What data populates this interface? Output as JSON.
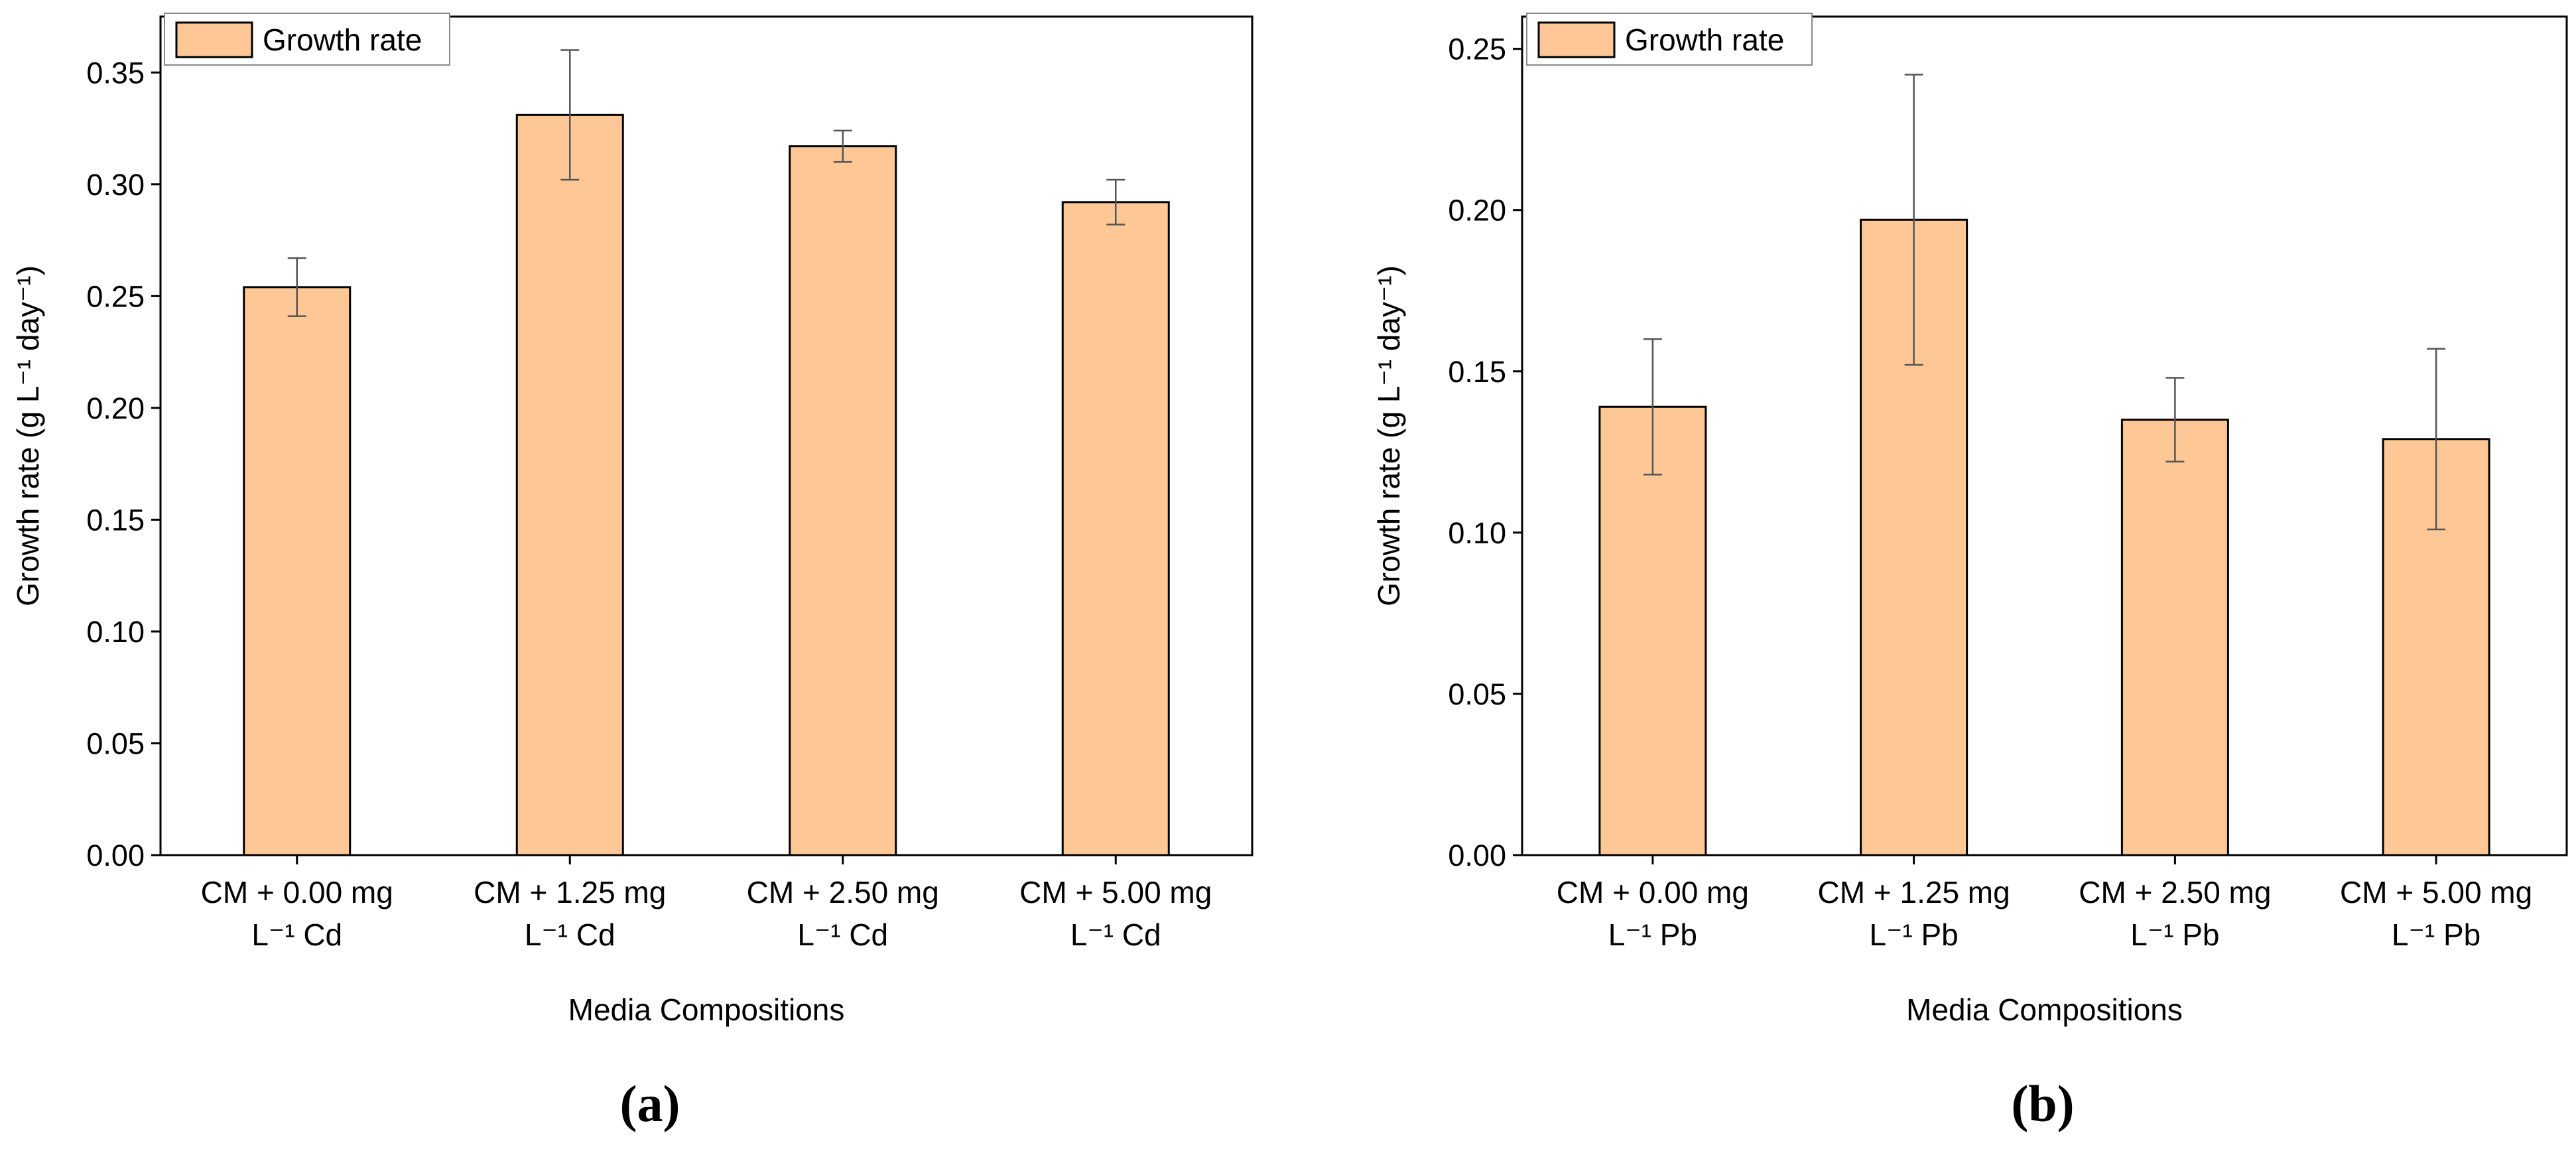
{
  "colors": {
    "bar_fill": "#FEC896",
    "bar_stroke": "#000000",
    "axis": "#000000",
    "errorbar": "#555555"
  },
  "chart_data": [
    {
      "panel": "(a)",
      "type": "bar",
      "categories": [
        [
          "CM + 0.00 mg",
          "L⁻¹ Cd"
        ],
        [
          "CM + 1.25 mg",
          "L⁻¹ Cd"
        ],
        [
          "CM + 2.50 mg",
          "L⁻¹ Cd"
        ],
        [
          "CM + 5.00 mg",
          "L⁻¹ Cd"
        ]
      ],
      "series": [
        {
          "name": "Growth rate",
          "values": [
            0.254,
            0.331,
            0.317,
            0.292
          ],
          "errors": [
            0.013,
            0.029,
            0.007,
            0.01
          ]
        }
      ],
      "xlabel": "Media Compositions",
      "ylabel": "Growth rate (g L⁻¹ day⁻¹)",
      "ylim": [
        0,
        0.375
      ],
      "yticks": [
        "0.00",
        "0.05",
        "0.10",
        "0.15",
        "0.20",
        "0.25",
        "0.30",
        "0.35"
      ],
      "legend": "top-left"
    },
    {
      "panel": "(b)",
      "type": "bar",
      "categories": [
        [
          "CM + 0.00 mg",
          "L⁻¹ Pb"
        ],
        [
          "CM + 1.25 mg",
          "L⁻¹ Pb"
        ],
        [
          "CM + 2.50 mg",
          "L⁻¹ Pb"
        ],
        [
          "CM + 5.00 mg",
          "L⁻¹ Pb"
        ]
      ],
      "series": [
        {
          "name": "Growth rate",
          "values": [
            0.139,
            0.197,
            0.135,
            0.129
          ],
          "errors": [
            0.021,
            0.045,
            0.013,
            0.028
          ]
        }
      ],
      "xlabel": "Media Compositions",
      "ylabel": "Growth rate (g L⁻¹ day⁻¹)",
      "ylim": [
        0,
        0.26
      ],
      "yticks": [
        "0.00",
        "0.05",
        "0.10",
        "0.15",
        "0.20",
        "0.25"
      ],
      "legend": "top-left"
    }
  ]
}
